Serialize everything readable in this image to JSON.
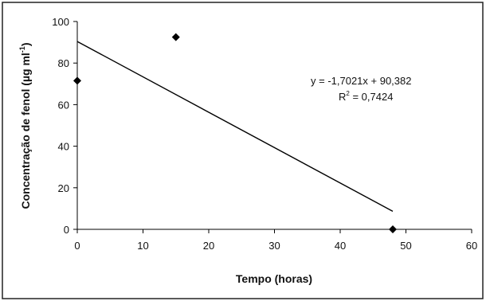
{
  "chart_data": {
    "type": "scatter",
    "title": "",
    "xlabel": "Tempo (horas)",
    "ylabel": "Concentração de fenol (µg ml",
    "ylabel_sup": "-1",
    "ylabel_end": ")",
    "xlim": [
      0,
      60
    ],
    "ylim": [
      0,
      100
    ],
    "xticks": [
      0,
      10,
      20,
      30,
      40,
      50,
      60
    ],
    "yticks": [
      0,
      20,
      40,
      60,
      80,
      100
    ],
    "grid": false,
    "series": [
      {
        "marker": "diamond",
        "color": "#000000",
        "points": [
          {
            "x": 0,
            "y": 71.5
          },
          {
            "x": 15,
            "y": 92.5
          },
          {
            "x": 48,
            "y": 0
          }
        ]
      }
    ],
    "trendline": {
      "slope": -1.7021,
      "intercept": 90.382,
      "x_range": [
        0,
        48
      ],
      "color": "#000000"
    },
    "annotations": {
      "equation": "y = -1,7021x + 90,382",
      "r2_prefix": "R",
      "r2_sup": "2",
      "r2_value": " = 0,7424"
    }
  }
}
